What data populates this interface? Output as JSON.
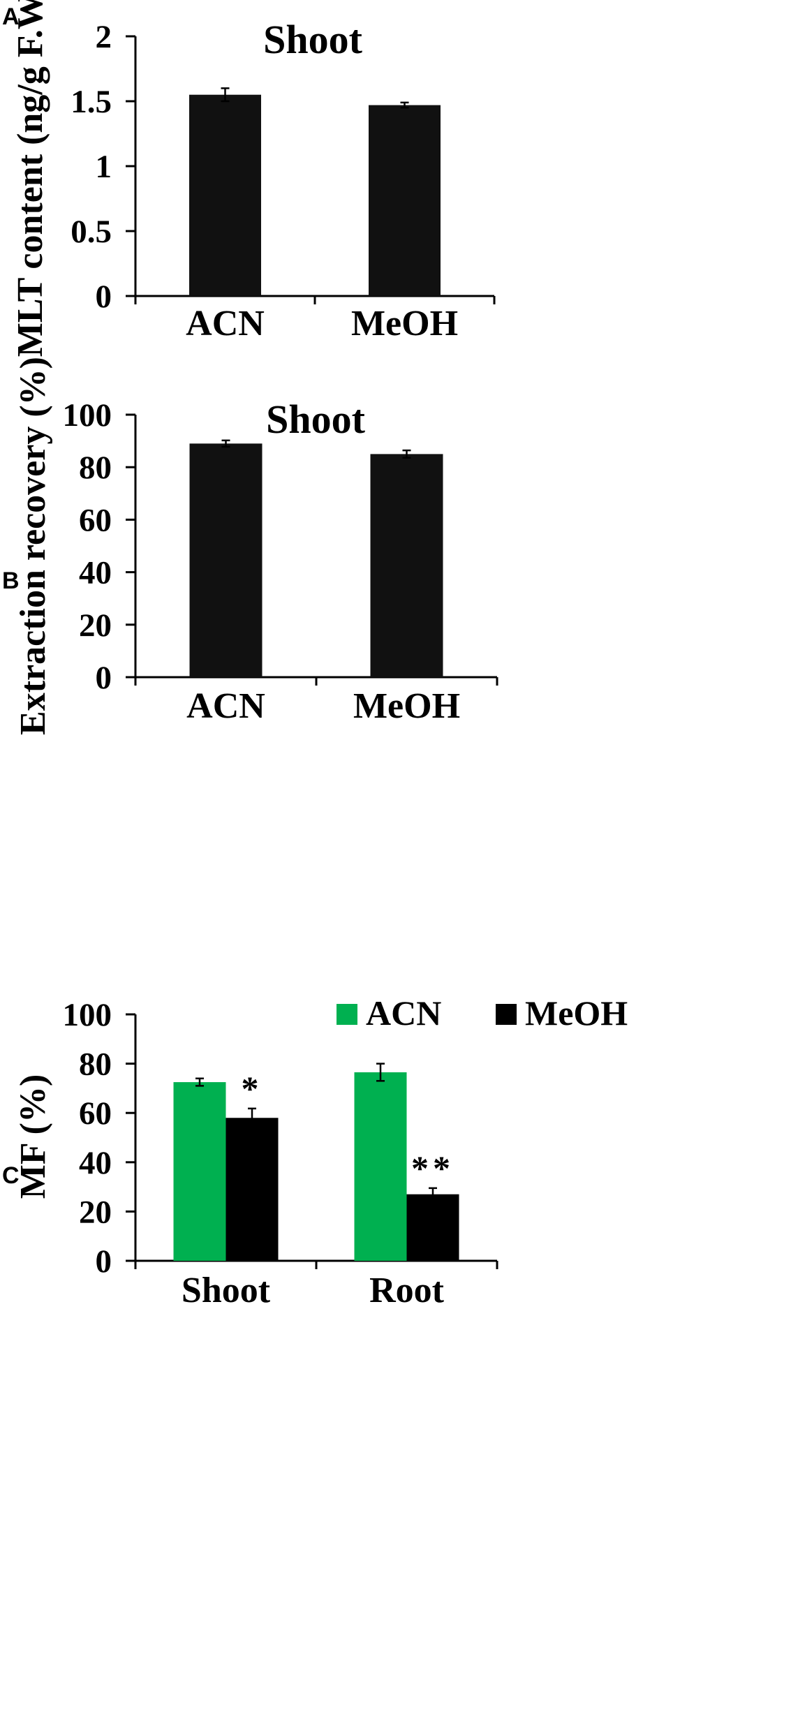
{
  "panels": {
    "a": {
      "letter": "A"
    },
    "b": {
      "letter": "B"
    },
    "c": {
      "letter": "C"
    }
  },
  "chart_data": [
    {
      "type": "bar",
      "title": "Shoot",
      "xlabel": "",
      "ylabel": "MLT content (ng/g F.W.)",
      "ylim": [
        0,
        2
      ],
      "yticks": [
        0,
        0.5,
        1,
        1.5,
        2
      ],
      "ytick_labels": [
        "0",
        "0.5",
        "1",
        "1.5",
        "2"
      ],
      "grid": false,
      "categories": [
        "ACN",
        "MeOH"
      ],
      "series": [
        {
          "values": [
            1.55,
            1.47
          ],
          "errors": [
            0.05,
            0.02
          ],
          "color": "#111111"
        }
      ]
    },
    {
      "type": "bar",
      "title": "Shoot",
      "xlabel": "",
      "ylabel": "Extraction recovery (%)",
      "ylim": [
        0,
        100
      ],
      "yticks": [
        0,
        20,
        40,
        60,
        80,
        100
      ],
      "ytick_labels": [
        "0",
        "20",
        "40",
        "60",
        "80",
        "100"
      ],
      "grid": false,
      "categories": [
        "ACN",
        "MeOH"
      ],
      "series": [
        {
          "values": [
            89,
            85
          ],
          "errors": [
            1.2,
            1.4
          ],
          "color": "#111111"
        }
      ]
    },
    {
      "type": "bar",
      "title": "",
      "xlabel": "",
      "ylabel": "MF (%)",
      "ylim": [
        0,
        100
      ],
      "yticks": [
        0,
        20,
        40,
        60,
        80,
        100
      ],
      "ytick_labels": [
        "0",
        "20",
        "40",
        "60",
        "80",
        "100"
      ],
      "grid": false,
      "legend": "top",
      "categories": [
        "Shoot",
        "Root"
      ],
      "series": [
        {
          "name": "ACN",
          "values": [
            72.5,
            76.5
          ],
          "errors": [
            1.5,
            3.5
          ],
          "color": "#00B050"
        },
        {
          "name": "MeOH",
          "values": [
            58,
            27
          ],
          "errors": [
            3.8,
            2.5
          ],
          "color": "#000000"
        }
      ],
      "annotations": [
        {
          "category": "Shoot",
          "series": "MeOH",
          "text": "*"
        },
        {
          "category": "Root",
          "series": "MeOH",
          "text": "**"
        }
      ]
    }
  ]
}
